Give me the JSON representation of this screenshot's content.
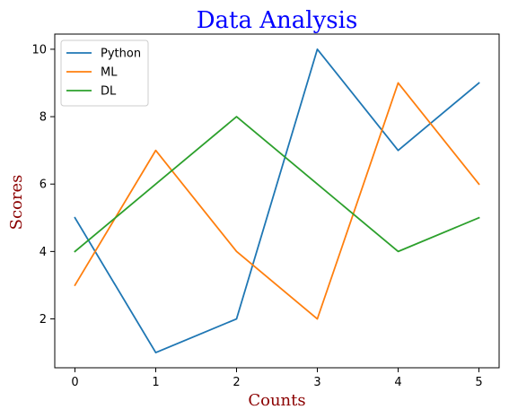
{
  "chart_data": {
    "type": "line",
    "title": "Data Analysis",
    "xlabel": "Counts",
    "ylabel": "Scores",
    "x": [
      0,
      1,
      2,
      3,
      4,
      5
    ],
    "series": [
      {
        "name": "Python",
        "values": [
          5,
          1,
          2,
          10,
          7,
          9
        ],
        "color": "#1f77b4"
      },
      {
        "name": "ML",
        "values": [
          3,
          7,
          4,
          2,
          9,
          6
        ],
        "color": "#ff7f0e"
      },
      {
        "name": "DL",
        "values": [
          4,
          6,
          8,
          6,
          4,
          5
        ],
        "color": "#2ca02c"
      }
    ],
    "xlim": [
      -0.25,
      5.25
    ],
    "ylim": [
      0.55,
      10.45
    ],
    "xticks": [
      0,
      1,
      2,
      3,
      4,
      5
    ],
    "yticks": [
      2,
      4,
      6,
      8,
      10
    ],
    "grid": false,
    "legend_position": "top-left",
    "title_color": "#0000ff",
    "label_color": "#8b0000"
  }
}
